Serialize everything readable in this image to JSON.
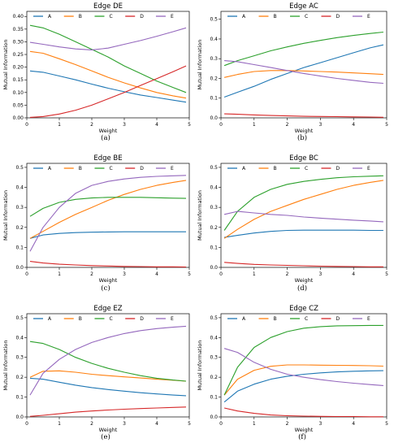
{
  "colors": {
    "A": "#1f77b4",
    "B": "#ff7f0e",
    "C": "#2ca02c",
    "D": "#d62728",
    "E": "#9467bd"
  },
  "chart_data": [
    {
      "type": "line",
      "title": "Edge DE",
      "caption": "(a)",
      "xlabel": "Weight",
      "ylabel": "Mutual Information",
      "xlim": [
        0,
        5
      ],
      "ylim": [
        0,
        0.42
      ],
      "xticks": [
        0,
        1,
        2,
        3,
        4,
        5
      ],
      "yticks": [
        0,
        0.05,
        0.1,
        0.15,
        0.2,
        0.25,
        0.3,
        0.35,
        0.4
      ],
      "ytick_labels": [
        "0.00",
        "0.05",
        "0.10",
        "0.15",
        "0.20",
        "0.25",
        "0.30",
        "0.35",
        "0.40"
      ],
      "x": [
        0.1,
        0.5,
        1.0,
        1.5,
        2.0,
        2.5,
        3.0,
        3.5,
        4.0,
        4.5,
        4.9
      ],
      "series": [
        {
          "name": "A",
          "values": [
            0.185,
            0.18,
            0.165,
            0.15,
            0.133,
            0.117,
            0.103,
            0.09,
            0.08,
            0.07,
            0.062
          ]
        },
        {
          "name": "B",
          "values": [
            0.262,
            0.255,
            0.233,
            0.21,
            0.185,
            0.16,
            0.138,
            0.118,
            0.1,
            0.087,
            0.078
          ]
        },
        {
          "name": "C",
          "values": [
            0.365,
            0.355,
            0.33,
            0.3,
            0.27,
            0.24,
            0.205,
            0.175,
            0.145,
            0.12,
            0.1
          ]
        },
        {
          "name": "D",
          "values": [
            0.002,
            0.005,
            0.015,
            0.03,
            0.05,
            0.075,
            0.1,
            0.128,
            0.155,
            0.182,
            0.205
          ]
        },
        {
          "name": "E",
          "values": [
            0.298,
            0.29,
            0.28,
            0.272,
            0.268,
            0.275,
            0.29,
            0.305,
            0.322,
            0.34,
            0.355
          ]
        }
      ]
    },
    {
      "type": "line",
      "title": "Edge AC",
      "caption": "(b)",
      "xlabel": "Weight",
      "ylabel": "Mutual Information",
      "xlim": [
        0,
        5
      ],
      "ylim": [
        0,
        0.54
      ],
      "xticks": [
        0,
        1,
        2,
        3,
        4,
        5
      ],
      "yticks": [
        0,
        0.1,
        0.2,
        0.3,
        0.4,
        0.5
      ],
      "ytick_labels": [
        "0.0",
        "0.1",
        "0.2",
        "0.3",
        "0.4",
        "0.5"
      ],
      "x": [
        0.1,
        0.5,
        1.0,
        1.5,
        2.0,
        2.5,
        3.0,
        3.5,
        4.0,
        4.5,
        4.9
      ],
      "series": [
        {
          "name": "A",
          "values": [
            0.105,
            0.13,
            0.16,
            0.195,
            0.225,
            0.255,
            0.28,
            0.305,
            0.33,
            0.355,
            0.37
          ]
        },
        {
          "name": "B",
          "values": [
            0.205,
            0.22,
            0.235,
            0.24,
            0.24,
            0.238,
            0.235,
            0.232,
            0.228,
            0.224,
            0.22
          ]
        },
        {
          "name": "C",
          "values": [
            0.265,
            0.29,
            0.315,
            0.34,
            0.36,
            0.378,
            0.393,
            0.407,
            0.418,
            0.428,
            0.435
          ]
        },
        {
          "name": "D",
          "values": [
            0.02,
            0.018,
            0.015,
            0.012,
            0.01,
            0.008,
            0.007,
            0.006,
            0.005,
            0.004,
            0.003
          ]
        },
        {
          "name": "E",
          "values": [
            0.29,
            0.285,
            0.27,
            0.255,
            0.24,
            0.225,
            0.212,
            0.2,
            0.19,
            0.18,
            0.175
          ]
        }
      ]
    },
    {
      "type": "line",
      "title": "Edge BE",
      "caption": "(c)",
      "xlabel": "Weight",
      "ylabel": "Mutual Information",
      "xlim": [
        0,
        5
      ],
      "ylim": [
        0,
        0.52
      ],
      "xticks": [
        0,
        1,
        2,
        3,
        4,
        5
      ],
      "yticks": [
        0,
        0.1,
        0.2,
        0.3,
        0.4,
        0.5
      ],
      "ytick_labels": [
        "0.0",
        "0.1",
        "0.2",
        "0.3",
        "0.4",
        "0.5"
      ],
      "x": [
        0.1,
        0.5,
        1.0,
        1.5,
        2.0,
        2.5,
        3.0,
        3.5,
        4.0,
        4.5,
        4.9
      ],
      "series": [
        {
          "name": "A",
          "values": [
            0.145,
            0.162,
            0.17,
            0.174,
            0.176,
            0.177,
            0.178,
            0.178,
            0.178,
            0.178,
            0.178
          ]
        },
        {
          "name": "B",
          "values": [
            0.145,
            0.18,
            0.225,
            0.265,
            0.3,
            0.335,
            0.365,
            0.39,
            0.41,
            0.425,
            0.435
          ]
        },
        {
          "name": "C",
          "values": [
            0.255,
            0.295,
            0.325,
            0.34,
            0.347,
            0.35,
            0.35,
            0.35,
            0.348,
            0.346,
            0.345
          ]
        },
        {
          "name": "D",
          "values": [
            0.03,
            0.022,
            0.016,
            0.012,
            0.009,
            0.007,
            0.005,
            0.004,
            0.003,
            0.003,
            0.002
          ]
        },
        {
          "name": "E",
          "values": [
            0.08,
            0.2,
            0.3,
            0.37,
            0.41,
            0.43,
            0.442,
            0.45,
            0.455,
            0.458,
            0.46
          ]
        }
      ]
    },
    {
      "type": "line",
      "title": "Edge BC",
      "caption": "(d)",
      "xlabel": "Weight",
      "ylabel": "Mutual Information",
      "xlim": [
        0,
        5
      ],
      "ylim": [
        0,
        0.52
      ],
      "xticks": [
        0,
        1,
        2,
        3,
        4,
        5
      ],
      "yticks": [
        0,
        0.1,
        0.2,
        0.3,
        0.4,
        0.5
      ],
      "ytick_labels": [
        "0.0",
        "0.1",
        "0.2",
        "0.3",
        "0.4",
        "0.5"
      ],
      "x": [
        0.1,
        0.5,
        1.0,
        1.5,
        2.0,
        2.5,
        3.0,
        3.5,
        4.0,
        4.5,
        4.9
      ],
      "series": [
        {
          "name": "A",
          "values": [
            0.15,
            0.16,
            0.172,
            0.18,
            0.185,
            0.186,
            0.186,
            0.186,
            0.186,
            0.185,
            0.185
          ]
        },
        {
          "name": "B",
          "values": [
            0.145,
            0.19,
            0.24,
            0.28,
            0.31,
            0.34,
            0.365,
            0.39,
            0.41,
            0.425,
            0.435
          ]
        },
        {
          "name": "C",
          "values": [
            0.185,
            0.28,
            0.35,
            0.39,
            0.415,
            0.43,
            0.44,
            0.448,
            0.453,
            0.456,
            0.458
          ]
        },
        {
          "name": "D",
          "values": [
            0.025,
            0.02,
            0.015,
            0.012,
            0.01,
            0.008,
            0.006,
            0.005,
            0.004,
            0.003,
            0.003
          ]
        },
        {
          "name": "E",
          "values": [
            0.265,
            0.28,
            0.272,
            0.265,
            0.26,
            0.252,
            0.246,
            0.241,
            0.236,
            0.232,
            0.228
          ]
        }
      ]
    },
    {
      "type": "line",
      "title": "Edge EZ",
      "caption": "(e)",
      "xlabel": "Weight",
      "ylabel": "Mutual Information",
      "xlim": [
        0,
        5
      ],
      "ylim": [
        0,
        0.52
      ],
      "xticks": [
        0,
        1,
        2,
        3,
        4,
        5
      ],
      "yticks": [
        0,
        0.1,
        0.2,
        0.3,
        0.4,
        0.5
      ],
      "ytick_labels": [
        "0.0",
        "0.1",
        "0.2",
        "0.3",
        "0.4",
        "0.5"
      ],
      "x": [
        0.1,
        0.5,
        1.0,
        1.5,
        2.0,
        2.5,
        3.0,
        3.5,
        4.0,
        4.5,
        4.9
      ],
      "series": [
        {
          "name": "A",
          "values": [
            0.195,
            0.19,
            0.175,
            0.16,
            0.148,
            0.138,
            0.13,
            0.122,
            0.116,
            0.11,
            0.107
          ]
        },
        {
          "name": "B",
          "values": [
            0.2,
            0.23,
            0.232,
            0.225,
            0.215,
            0.208,
            0.202,
            0.196,
            0.19,
            0.185,
            0.18
          ]
        },
        {
          "name": "C",
          "values": [
            0.38,
            0.37,
            0.34,
            0.3,
            0.27,
            0.245,
            0.225,
            0.208,
            0.195,
            0.186,
            0.18
          ]
        },
        {
          "name": "D",
          "values": [
            0.003,
            0.008,
            0.016,
            0.024,
            0.03,
            0.035,
            0.039,
            0.042,
            0.045,
            0.048,
            0.05
          ]
        },
        {
          "name": "E",
          "values": [
            0.11,
            0.22,
            0.29,
            0.34,
            0.375,
            0.4,
            0.42,
            0.435,
            0.445,
            0.452,
            0.457
          ]
        }
      ]
    },
    {
      "type": "line",
      "title": "Edge CZ",
      "caption": "(f)",
      "xlabel": "Weight",
      "ylabel": "Mutual Information",
      "xlim": [
        0,
        5
      ],
      "ylim": [
        0,
        0.52
      ],
      "xticks": [
        0,
        1,
        2,
        3,
        4,
        5
      ],
      "yticks": [
        0,
        0.1,
        0.2,
        0.3,
        0.4,
        0.5
      ],
      "ytick_labels": [
        "0.0",
        "0.1",
        "0.2",
        "0.3",
        "0.4",
        "0.5"
      ],
      "x": [
        0.1,
        0.5,
        1.0,
        1.5,
        2.0,
        2.5,
        3.0,
        3.5,
        4.0,
        4.5,
        4.9
      ],
      "series": [
        {
          "name": "A",
          "values": [
            0.075,
            0.13,
            0.165,
            0.19,
            0.205,
            0.215,
            0.222,
            0.227,
            0.23,
            0.232,
            0.233
          ]
        },
        {
          "name": "B",
          "values": [
            0.11,
            0.19,
            0.235,
            0.255,
            0.262,
            0.262,
            0.261,
            0.26,
            0.259,
            0.258,
            0.256
          ]
        },
        {
          "name": "C",
          "values": [
            0.11,
            0.25,
            0.35,
            0.4,
            0.43,
            0.447,
            0.455,
            0.459,
            0.46,
            0.461,
            0.461
          ]
        },
        {
          "name": "D",
          "values": [
            0.045,
            0.03,
            0.018,
            0.01,
            0.006,
            0.004,
            0.003,
            0.002,
            0.002,
            0.001,
            0.001
          ]
        },
        {
          "name": "E",
          "values": [
            0.345,
            0.325,
            0.275,
            0.24,
            0.215,
            0.2,
            0.188,
            0.178,
            0.17,
            0.163,
            0.158
          ]
        }
      ]
    }
  ]
}
